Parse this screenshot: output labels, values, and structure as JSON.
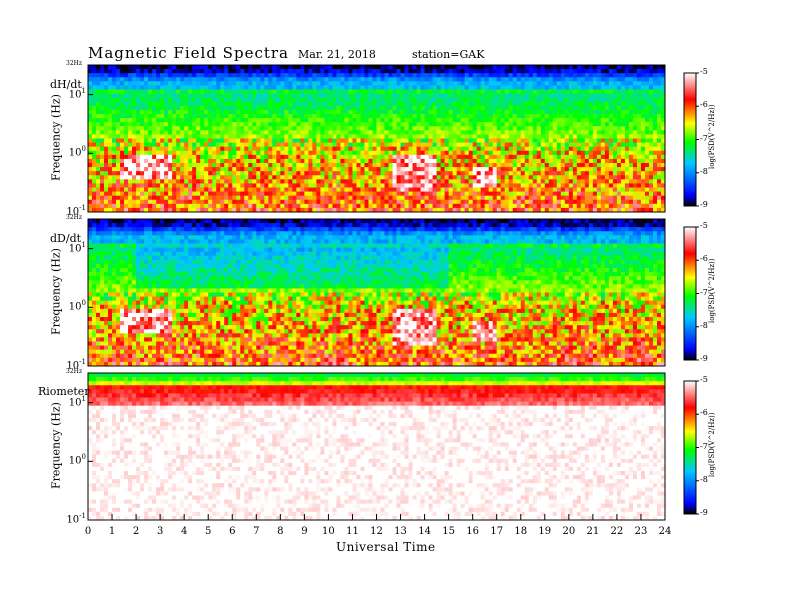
{
  "header": {
    "title": "Magnetic  Field  Spectra",
    "date": "Mar. 21, 2018",
    "station": "station=GAK"
  },
  "chart_data": [
    {
      "type": "heatmap",
      "panel_label": "dH/dt",
      "ylabel": "Frequency  (Hz)",
      "y_scale": "log",
      "ylim": [
        0.1,
        32
      ],
      "y_ticks": [
        "10^-1",
        "10^0",
        "10^1"
      ],
      "y_top_label": "32Hz",
      "x": [
        0,
        24
      ],
      "colorbar": {
        "label": "log(PSD(V^2/Hz))",
        "range": [
          -9,
          -5
        ],
        "ticks": [
          "-5",
          "-6",
          "-7",
          "-8",
          "-9"
        ]
      }
    },
    {
      "type": "heatmap",
      "panel_label": "dD/dt",
      "ylabel": "Frequency  (Hz)",
      "y_scale": "log",
      "ylim": [
        0.1,
        32
      ],
      "y_ticks": [
        "10^-1",
        "10^0",
        "10^1"
      ],
      "y_top_label": "32Hz",
      "x": [
        0,
        24
      ],
      "colorbar": {
        "label": "log(PSD(V^2/Hz))",
        "range": [
          -9,
          -5
        ],
        "ticks": [
          "-5",
          "-6",
          "-7",
          "-8",
          "-9"
        ]
      }
    },
    {
      "type": "heatmap",
      "panel_label": "Riometer",
      "ylabel": "Frequency  (Hz)",
      "y_scale": "log",
      "ylim": [
        0.1,
        32
      ],
      "y_ticks": [
        "10^-1",
        "10^0",
        "10^1"
      ],
      "y_top_label": "32Hz",
      "x": [
        0,
        24
      ],
      "colorbar": {
        "label": "log(PSD(V^2/Hz))",
        "range": [
          -9,
          -5
        ],
        "ticks": [
          "-5",
          "-6",
          "-7",
          "-8",
          "-9"
        ]
      }
    }
  ],
  "xaxis": {
    "label": "Universal Time",
    "ticks": [
      "0",
      "1",
      "2",
      "3",
      "4",
      "5",
      "6",
      "7",
      "8",
      "9",
      "10",
      "11",
      "12",
      "13",
      "14",
      "15",
      "16",
      "17",
      "18",
      "19",
      "20",
      "21",
      "22",
      "23",
      "24"
    ]
  },
  "colors": {
    "colormap": [
      "#000000",
      "#0000ff",
      "#00c8ff",
      "#00ff00",
      "#ffff00",
      "#ff0000",
      "#ffffff"
    ]
  }
}
